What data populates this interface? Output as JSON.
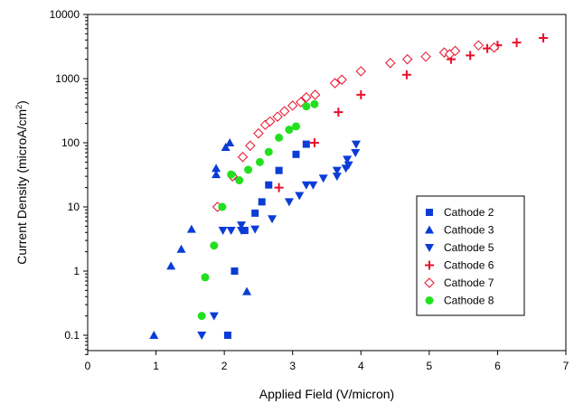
{
  "chart_data": {
    "type": "scatter",
    "title": "",
    "xlabel": "Applied Field (V/micron)",
    "ylabel_main": "Current Density (microA/cm",
    "ylabel_sup": "2",
    "ylabel_tail": ")",
    "x_scale": "linear",
    "y_scale": "log",
    "xlim": [
      0,
      7
    ],
    "ylim": [
      0.05,
      10000
    ],
    "x_ticks": [
      0,
      1,
      2,
      3,
      4,
      5,
      6,
      7
    ],
    "y_ticks": [
      0.1,
      1,
      10,
      100,
      1000,
      10000
    ],
    "x_tick_labels": [
      "0",
      "1",
      "2",
      "3",
      "4",
      "5",
      "6",
      "7"
    ],
    "y_tick_labels": [
      "0.1",
      "1",
      "10",
      "100",
      "1000",
      "10000"
    ],
    "grid": false,
    "legend_position": "bottom-right",
    "series": [
      {
        "name": "Cathode 2",
        "marker": "square",
        "color": "#0a3cd6",
        "points": [
          [
            2.05,
            0.1
          ],
          [
            2.15,
            1.0
          ],
          [
            2.3,
            4.3
          ],
          [
            2.45,
            8.0
          ],
          [
            2.55,
            12.0
          ],
          [
            2.65,
            22.0
          ],
          [
            2.8,
            37.0
          ],
          [
            3.05,
            66.0
          ],
          [
            3.2,
            95.0
          ]
        ]
      },
      {
        "name": "Cathode 3",
        "marker": "triangle-up",
        "color": "#0a3cd6",
        "points": [
          [
            0.97,
            0.1
          ],
          [
            1.22,
            1.2
          ],
          [
            1.37,
            2.2
          ],
          [
            1.52,
            4.5
          ],
          [
            1.88,
            40.0
          ],
          [
            1.88,
            32.0
          ],
          [
            2.02,
            85.0
          ],
          [
            2.08,
            100.0
          ],
          [
            2.15,
            30.0
          ],
          [
            2.33,
            0.48
          ]
        ]
      },
      {
        "name": "Cathode 5",
        "marker": "triangle-down",
        "color": "#0a3cd6",
        "points": [
          [
            1.67,
            0.1
          ],
          [
            1.85,
            0.2
          ],
          [
            1.98,
            4.3
          ],
          [
            2.1,
            4.3
          ],
          [
            2.25,
            5.2
          ],
          [
            2.25,
            4.3
          ],
          [
            2.45,
            4.5
          ],
          [
            2.7,
            6.5
          ],
          [
            2.95,
            12.0
          ],
          [
            3.1,
            15.0
          ],
          [
            3.2,
            22.0
          ],
          [
            3.3,
            22.0
          ],
          [
            3.45,
            28.0
          ],
          [
            3.65,
            30.0
          ],
          [
            3.65,
            37.0
          ],
          [
            3.78,
            40.0
          ],
          [
            3.8,
            55.0
          ],
          [
            3.82,
            45.0
          ],
          [
            3.92,
            70.0
          ],
          [
            3.93,
            95.0
          ]
        ]
      },
      {
        "name": "Cathode 6",
        "marker": "plus",
        "color": "#e8102a",
        "points": [
          [
            2.8,
            20.0
          ],
          [
            3.32,
            100.0
          ],
          [
            3.67,
            300.0
          ],
          [
            4.0,
            560.0
          ],
          [
            4.67,
            1150.0
          ],
          [
            5.32,
            2000.0
          ],
          [
            5.6,
            2300.0
          ],
          [
            5.85,
            2950.0
          ],
          [
            6.0,
            3300.0
          ],
          [
            6.28,
            3650.0
          ],
          [
            6.67,
            4300.0
          ]
        ]
      },
      {
        "name": "Cathode 7",
        "marker": "diamond-open",
        "color": "#e8102a",
        "points": [
          [
            1.9,
            10.0
          ],
          [
            2.12,
            30.0
          ],
          [
            2.27,
            60.0
          ],
          [
            2.38,
            90.0
          ],
          [
            2.5,
            140.0
          ],
          [
            2.6,
            190.0
          ],
          [
            2.67,
            215.0
          ],
          [
            2.78,
            255.0
          ],
          [
            2.88,
            310.0
          ],
          [
            3.0,
            380.0
          ],
          [
            3.12,
            430.0
          ],
          [
            3.2,
            510.0
          ],
          [
            3.33,
            560.0
          ],
          [
            3.62,
            850.0
          ],
          [
            3.72,
            960.0
          ],
          [
            4.0,
            1300.0
          ],
          [
            4.43,
            1750.0
          ],
          [
            4.68,
            2000.0
          ],
          [
            4.95,
            2200.0
          ],
          [
            5.22,
            2550.0
          ],
          [
            5.3,
            2400.0
          ],
          [
            5.38,
            2700.0
          ],
          [
            5.72,
            3300.0
          ],
          [
            5.95,
            3050.0
          ]
        ]
      },
      {
        "name": "Cathode 8",
        "marker": "circle",
        "color": "#22e01e",
        "points": [
          [
            1.67,
            0.2
          ],
          [
            1.72,
            0.8
          ],
          [
            1.85,
            2.5
          ],
          [
            1.97,
            10.0
          ],
          [
            2.1,
            32.0
          ],
          [
            2.22,
            26.0
          ],
          [
            2.35,
            38.0
          ],
          [
            2.52,
            50.0
          ],
          [
            2.65,
            72.0
          ],
          [
            2.8,
            120.0
          ],
          [
            2.95,
            160.0
          ],
          [
            3.05,
            180.0
          ],
          [
            3.2,
            370.0
          ],
          [
            3.32,
            400.0
          ]
        ]
      }
    ]
  }
}
